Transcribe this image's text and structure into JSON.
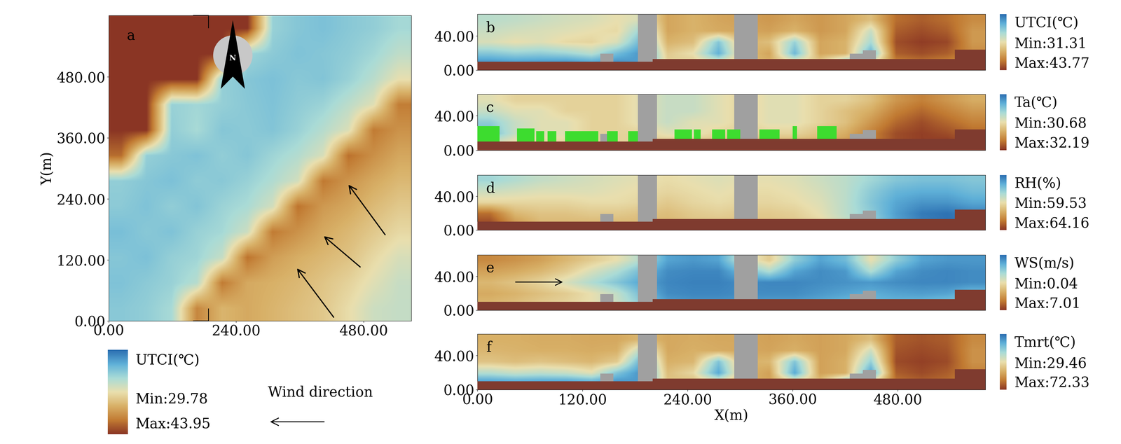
{
  "chart_data": [
    {
      "type": "heatmap",
      "label": "a",
      "ylabel": "Y(m)",
      "north_label": "N",
      "wind_label": "Wind direction",
      "xlim": [
        0,
        570
      ],
      "ylim": [
        0,
        600
      ],
      "xticks": [
        {
          "value": 0,
          "label": "0.00"
        },
        {
          "value": 240,
          "label": "240.00"
        },
        {
          "value": 480,
          "label": "480.00"
        }
      ],
      "yticks": [
        {
          "value": 0,
          "label": "0.00"
        },
        {
          "value": 120,
          "label": "120.00"
        },
        {
          "value": 240,
          "label": "240.00"
        },
        {
          "value": 360,
          "label": "360.00"
        },
        {
          "value": 480,
          "label": "480.00"
        }
      ],
      "colorbar": {
        "title": "UTCI(℃)",
        "range": [
          29.78,
          43.95
        ],
        "min_label": "Min:29.78",
        "max_label": "Max:43.95"
      },
      "cells": [
        [
          33.5,
          33.8,
          34.5,
          41.0,
          39.0,
          39.5,
          39.0,
          38.5,
          38.0,
          37.0,
          35.8,
          35.5
        ],
        [
          33.2,
          33.6,
          34.0,
          35.0,
          41.5,
          39.5,
          39.2,
          38.8,
          38.2,
          37.5,
          36.5,
          35.6
        ],
        [
          33.4,
          33.1,
          33.9,
          34.2,
          35.5,
          41.8,
          40.0,
          39.3,
          38.8,
          38.3,
          37.2,
          36.2
        ],
        [
          33.0,
          33.5,
          33.2,
          34.0,
          34.4,
          35.8,
          41.5,
          40.5,
          39.5,
          38.8,
          38.0,
          37.2
        ],
        [
          33.6,
          33.2,
          33.8,
          33.3,
          34.1,
          34.6,
          36.0,
          41.8,
          40.2,
          39.6,
          38.7,
          38.0
        ],
        [
          33.8,
          33.4,
          33.1,
          33.7,
          33.5,
          34.0,
          34.8,
          36.0,
          41.6,
          40.4,
          39.5,
          38.8
        ],
        [
          42.0,
          33.9,
          33.5,
          33.2,
          33.8,
          33.4,
          34.2,
          34.9,
          36.2,
          41.9,
          40.6,
          39.6
        ],
        [
          43.95,
          43.95,
          33.8,
          34.5,
          33.4,
          33.6,
          33.3,
          34.0,
          35.0,
          36.3,
          41.5,
          40.5
        ],
        [
          43.95,
          43.95,
          34.0,
          34.3,
          33.9,
          33.5,
          33.2,
          33.7,
          34.1,
          35.2,
          36.5,
          41.4
        ],
        [
          43.95,
          43.95,
          43.95,
          43.95,
          33.9,
          33.4,
          33.1,
          33.5,
          33.3,
          34.0,
          35.1,
          36.8
        ],
        [
          43.95,
          43.95,
          43.95,
          43.95,
          43.95,
          34.2,
          33.6,
          33.2,
          33.4,
          33.7,
          34.3,
          35.3
        ],
        [
          43.95,
          43.95,
          43.95,
          43.95,
          43.95,
          43.95,
          34.0,
          33.4,
          33.1,
          33.5,
          33.8,
          34.4
        ]
      ]
    },
    {
      "type": "heatmap",
      "label": "b",
      "xlim": [
        0,
        580
      ],
      "ylim": [
        0,
        65
      ],
      "yticks": [
        {
          "value": 0,
          "label": "0.00"
        },
        {
          "value": 40,
          "label": "40.00"
        }
      ],
      "colorbar": {
        "title": "UTCI(℃)",
        "range": [
          31.31,
          43.77
        ],
        "min_label": "Min:31.31",
        "max_label": "Max:43.77"
      },
      "terrain": [
        [
          0,
          200,
          10
        ],
        [
          200,
          545,
          13
        ],
        [
          545,
          580,
          24
        ]
      ],
      "buildings": [
        [
          183,
          205,
          65
        ],
        [
          293,
          320,
          65
        ],
        [
          140,
          155,
          19
        ],
        [
          425,
          440,
          19
        ],
        [
          440,
          455,
          23
        ]
      ],
      "cells": [
        [
          32.0,
          32.2,
          32.1,
          31.8,
          32.3,
          32.0,
          33.0,
          38.0,
          38.5,
          38.0,
          39.0,
          39.5,
          39.0,
          38.0,
          33.5,
          38.0,
          41.0,
          41.5,
          41.0,
          40.5
        ],
        [
          34.5,
          35.0,
          34.8,
          35.2,
          36.0,
          34.0,
          32.5,
          38.5,
          37.5,
          33.5,
          39.0,
          40.0,
          33.8,
          40.0,
          39.5,
          33.5,
          42.5,
          43.0,
          42.5,
          41.0
        ],
        [
          37.0,
          37.5,
          37.2,
          37.8,
          38.0,
          37.0,
          33.5,
          39.5,
          39.0,
          34.5,
          39.5,
          39.0,
          35.0,
          40.0,
          39.5,
          35.5,
          43.0,
          43.5,
          43.2,
          40.5
        ],
        [
          36.5,
          36.8,
          37.0,
          37.2,
          37.5,
          37.8,
          35.0,
          40.0,
          39.5,
          39.8,
          40.0,
          40.2,
          39.5,
          40.5,
          40.0,
          36.5,
          42.5,
          43.0,
          42.5,
          40.5
        ],
        [
          36.0,
          36.2,
          36.5,
          36.8,
          37.0,
          37.5,
          37.0,
          40.0,
          39.5,
          40.0,
          40.2,
          40.5,
          40.0,
          40.5,
          40.0,
          39.0,
          42.0,
          42.5,
          42.0,
          41.0
        ]
      ]
    },
    {
      "type": "heatmap",
      "label": "c",
      "xlim": [
        0,
        580
      ],
      "ylim": [
        0,
        65
      ],
      "yticks": [
        {
          "value": 0,
          "label": "0.00"
        },
        {
          "value": 40,
          "label": "40.00"
        }
      ],
      "colorbar": {
        "title": "Ta(℃)",
        "range": [
          30.68,
          32.19
        ],
        "min_label": "Min:30.68",
        "max_label": "Max:32.19"
      },
      "terrain": [
        [
          0,
          200,
          10
        ],
        [
          200,
          545,
          13
        ],
        [
          545,
          580,
          24
        ]
      ],
      "buildings": [
        [
          183,
          205,
          65
        ],
        [
          293,
          320,
          65
        ],
        [
          140,
          155,
          19
        ],
        [
          425,
          440,
          19
        ],
        [
          440,
          455,
          23
        ]
      ],
      "vegetation": [
        [
          0,
          25,
          28
        ],
        [
          45,
          65,
          25
        ],
        [
          67,
          76,
          22
        ],
        [
          80,
          90,
          22
        ],
        [
          100,
          138,
          22
        ],
        [
          148,
          160,
          22
        ],
        [
          172,
          183,
          22
        ],
        [
          225,
          245,
          24
        ],
        [
          247,
          255,
          24
        ],
        [
          268,
          283,
          24
        ],
        [
          285,
          300,
          24
        ],
        [
          322,
          345,
          24
        ],
        [
          360,
          365,
          28
        ],
        [
          388,
          410,
          28
        ]
      ],
      "cells": [
        [
          31.4,
          31.5,
          31.5,
          31.5,
          31.5,
          31.5,
          31.5,
          31.6,
          31.6,
          31.6,
          31.6,
          31.7,
          31.7,
          31.7,
          31.8,
          31.9,
          32.1,
          32.15,
          32.19,
          32.1
        ],
        [
          31.0,
          31.3,
          31.4,
          31.4,
          31.5,
          31.5,
          31.5,
          31.4,
          31.4,
          31.5,
          31.5,
          31.5,
          31.5,
          31.6,
          31.7,
          31.9,
          32.1,
          32.15,
          32.1,
          32.0
        ],
        [
          31.1,
          31.3,
          31.4,
          31.4,
          31.5,
          31.5,
          31.4,
          31.3,
          31.4,
          31.4,
          31.5,
          31.4,
          31.4,
          31.5,
          31.6,
          31.8,
          32.0,
          32.1,
          32.0,
          31.9
        ],
        [
          31.3,
          31.4,
          31.4,
          31.5,
          31.5,
          31.5,
          31.4,
          31.3,
          31.3,
          31.4,
          31.5,
          31.4,
          31.4,
          31.5,
          31.6,
          31.7,
          31.9,
          32.0,
          31.9,
          31.8
        ],
        [
          31.4,
          31.5,
          31.5,
          31.5,
          31.5,
          31.5,
          31.4,
          31.3,
          31.3,
          31.4,
          31.5,
          31.4,
          31.4,
          31.5,
          31.5,
          31.6,
          31.8,
          31.9,
          31.8,
          31.7
        ]
      ]
    },
    {
      "type": "heatmap",
      "label": "d",
      "xlim": [
        0,
        580
      ],
      "ylim": [
        0,
        65
      ],
      "yticks": [
        {
          "value": 0,
          "label": "0.00"
        },
        {
          "value": 40,
          "label": "40.00"
        }
      ],
      "colorbar": {
        "title": "RH(%)",
        "range": [
          59.53,
          64.16
        ],
        "min_label": "Min:59.53",
        "max_label": "Max:64.16"
      },
      "terrain": [
        [
          0,
          200,
          10
        ],
        [
          200,
          545,
          13
        ],
        [
          545,
          580,
          24
        ]
      ],
      "buildings": [
        [
          183,
          205,
          65
        ],
        [
          293,
          320,
          65
        ],
        [
          140,
          155,
          19
        ],
        [
          425,
          440,
          19
        ],
        [
          440,
          455,
          23
        ]
      ],
      "cells": [
        [
          64.0,
          63.0,
          62.5,
          62.5,
          62.5,
          62.5,
          62.5,
          62.5,
          62.3,
          62.3,
          62.3,
          62.3,
          62.2,
          62.0,
          61.5,
          61.0,
          60.2,
          59.8,
          59.6,
          59.7
        ],
        [
          63.5,
          62.5,
          62.3,
          62.3,
          62.2,
          62.2,
          62.3,
          62.4,
          62.2,
          62.1,
          62.2,
          62.2,
          62.1,
          61.8,
          61.3,
          60.8,
          60.1,
          59.7,
          59.6,
          59.8
        ],
        [
          62.0,
          62.0,
          62.0,
          62.0,
          61.9,
          61.9,
          62.0,
          62.2,
          62.0,
          61.9,
          62.0,
          62.0,
          61.9,
          61.7,
          61.3,
          60.7,
          60.2,
          60.0,
          60.0,
          60.2
        ],
        [
          61.5,
          61.6,
          61.7,
          61.7,
          61.7,
          61.8,
          61.9,
          62.0,
          61.9,
          61.8,
          61.9,
          61.9,
          61.8,
          61.6,
          61.3,
          60.8,
          60.4,
          60.3,
          60.3,
          60.5
        ],
        [
          61.0,
          61.2,
          61.4,
          61.5,
          61.6,
          61.7,
          61.8,
          61.9,
          61.8,
          61.7,
          61.8,
          61.8,
          61.7,
          61.5,
          61.3,
          61.0,
          60.7,
          60.6,
          60.6,
          60.7
        ]
      ]
    },
    {
      "type": "heatmap",
      "label": "e",
      "xlim": [
        0,
        580
      ],
      "ylim": [
        0,
        65
      ],
      "yticks": [
        {
          "value": 0,
          "label": "0.00"
        },
        {
          "value": 40,
          "label": "40.00"
        }
      ],
      "colorbar": {
        "title": "WS(m/s)",
        "range": [
          0.04,
          7.01
        ],
        "min_label": "Min:0.04",
        "max_label": "Max:7.01"
      },
      "terrain": [
        [
          0,
          200,
          10
        ],
        [
          200,
          545,
          13
        ],
        [
          545,
          580,
          24
        ]
      ],
      "buildings": [
        [
          183,
          205,
          65
        ],
        [
          293,
          320,
          65
        ],
        [
          140,
          155,
          19
        ],
        [
          425,
          440,
          19
        ],
        [
          440,
          455,
          23
        ]
      ],
      "cells": [
        [
          4.5,
          4.3,
          4.0,
          3.8,
          3.5,
          3.0,
          2.0,
          1.0,
          0.8,
          0.8,
          0.9,
          1.0,
          1.0,
          1.2,
          1.5,
          1.5,
          1.4,
          1.5,
          1.8,
          2.0
        ],
        [
          4.8,
          4.6,
          4.3,
          4.0,
          3.5,
          2.8,
          1.5,
          0.6,
          0.5,
          0.5,
          0.6,
          0.6,
          0.6,
          0.8,
          1.0,
          1.2,
          1.0,
          0.9,
          1.0,
          1.5
        ],
        [
          4.5,
          4.2,
          3.8,
          3.2,
          2.5,
          1.8,
          1.0,
          0.5,
          0.4,
          0.4,
          0.6,
          0.5,
          0.5,
          0.6,
          0.7,
          0.8,
          0.6,
          0.5,
          0.5,
          0.6
        ],
        [
          5.0,
          4.8,
          4.5,
          4.0,
          3.2,
          2.5,
          1.5,
          0.6,
          0.5,
          0.5,
          1.5,
          2.5,
          1.0,
          0.6,
          0.8,
          2.5,
          1.0,
          0.6,
          0.5,
          0.6
        ],
        [
          5.5,
          5.3,
          5.0,
          4.5,
          4.0,
          3.5,
          2.5,
          1.0,
          0.8,
          1.0,
          3.0,
          4.0,
          2.0,
          1.0,
          1.5,
          3.5,
          2.0,
          1.0,
          0.8,
          0.8
        ]
      ]
    },
    {
      "type": "heatmap",
      "label": "f",
      "xlabel": "X(m)",
      "xlim": [
        0,
        580
      ],
      "ylim": [
        0,
        65
      ],
      "xticks": [
        {
          "value": 0,
          "label": "0.00"
        },
        {
          "value": 120,
          "label": "120.00"
        },
        {
          "value": 240,
          "label": "240.00"
        },
        {
          "value": 360,
          "label": "360.00"
        },
        {
          "value": 480,
          "label": "480.00"
        }
      ],
      "yticks": [
        {
          "value": 0,
          "label": "0.00"
        },
        {
          "value": 40,
          "label": "40.00"
        }
      ],
      "colorbar": {
        "title": "Tmrt(℃)",
        "range": [
          29.46,
          72.33
        ],
        "min_label": "Min:29.46",
        "max_label": "Max:72.33"
      },
      "terrain": [
        [
          0,
          200,
          10
        ],
        [
          200,
          545,
          13
        ],
        [
          545,
          580,
          24
        ]
      ],
      "buildings": [
        [
          183,
          205,
          65
        ],
        [
          293,
          320,
          65
        ],
        [
          140,
          155,
          19
        ],
        [
          425,
          440,
          19
        ],
        [
          440,
          455,
          23
        ]
      ],
      "cells": [
        [
          32.0,
          32.5,
          32.0,
          31.5,
          33.0,
          32.0,
          35.0,
          55.0,
          57.0,
          55.0,
          58.0,
          60.0,
          57.0,
          55.0,
          36.0,
          55.0,
          65.0,
          67.0,
          66.0,
          63.0
        ],
        [
          45.0,
          47.0,
          46.0,
          47.0,
          50.0,
          40.0,
          33.0,
          56.0,
          52.0,
          36.0,
          57.0,
          60.0,
          36.0,
          60.0,
          58.0,
          35.0,
          68.0,
          70.0,
          68.0,
          64.0
        ],
        [
          55.0,
          56.0,
          55.0,
          56.0,
          57.0,
          54.0,
          36.0,
          58.0,
          57.0,
          40.0,
          58.0,
          57.0,
          40.0,
          60.0,
          58.0,
          42.0,
          70.0,
          71.0,
          70.0,
          62.0
        ],
        [
          57.0,
          57.5,
          58.0,
          58.0,
          58.5,
          58.0,
          45.0,
          59.0,
          58.0,
          58.5,
          59.0,
          59.5,
          58.0,
          60.0,
          59.0,
          48.0,
          69.0,
          70.0,
          69.0,
          62.0
        ],
        [
          58.0,
          58.0,
          58.5,
          58.5,
          59.0,
          59.0,
          57.0,
          59.0,
          58.5,
          59.0,
          59.0,
          60.0,
          59.0,
          60.0,
          59.0,
          56.0,
          68.0,
          69.0,
          68.0,
          63.0
        ]
      ]
    }
  ]
}
